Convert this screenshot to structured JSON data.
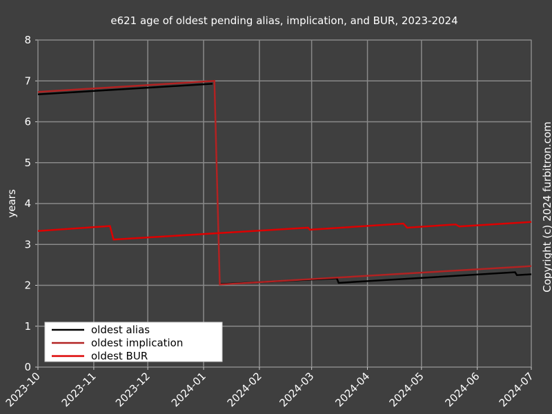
{
  "chart_data": {
    "type": "line",
    "title": "e621 age of oldest pending alias, implication, and BUR, 2023-2024",
    "ylabel": "years",
    "annotation": "Copyright (c) 2024 furbitron.com",
    "xlim": [
      "2023-10",
      "2024-07"
    ],
    "xticks": [
      "2023-10",
      "2023-11",
      "2023-12",
      "2024-01",
      "2024-02",
      "2024-03",
      "2024-04",
      "2024-05",
      "2024-06",
      "2024-07"
    ],
    "ylim": [
      0,
      8
    ],
    "yticks": [
      0,
      1,
      2,
      3,
      4,
      5,
      6,
      7,
      8
    ],
    "grid": true,
    "legend": "lower-left",
    "series": [
      {
        "name": "oldest alias",
        "color": "#000000",
        "x": [
          "2023-10-01",
          "2024-01-06",
          "2024-01-08",
          "2024-01-10",
          "2024-03-15",
          "2024-03-16",
          "2024-06-22",
          "2024-06-23",
          "2024-07-01"
        ],
        "values": [
          6.67,
          6.93,
          null,
          2.03,
          2.17,
          2.06,
          2.32,
          2.25,
          2.27
        ]
      },
      {
        "name": "oldest implication",
        "color": "#b22222",
        "x": [
          "2023-10-01",
          "2024-01-07",
          "2024-01-10",
          "2024-07-01"
        ],
        "values": [
          6.73,
          7.0,
          2.02,
          2.47
        ]
      },
      {
        "name": "oldest BUR",
        "color": "#dd0000",
        "x": [
          "2023-10-01",
          "2023-11-10",
          "2023-11-12",
          "2024-02-28",
          "2024-02-29",
          "2024-04-21",
          "2024-04-23",
          "2024-05-20",
          "2024-05-22",
          "2024-07-01"
        ],
        "values": [
          3.33,
          3.45,
          3.12,
          3.41,
          3.36,
          3.51,
          3.41,
          3.49,
          3.44,
          3.55
        ]
      }
    ]
  }
}
